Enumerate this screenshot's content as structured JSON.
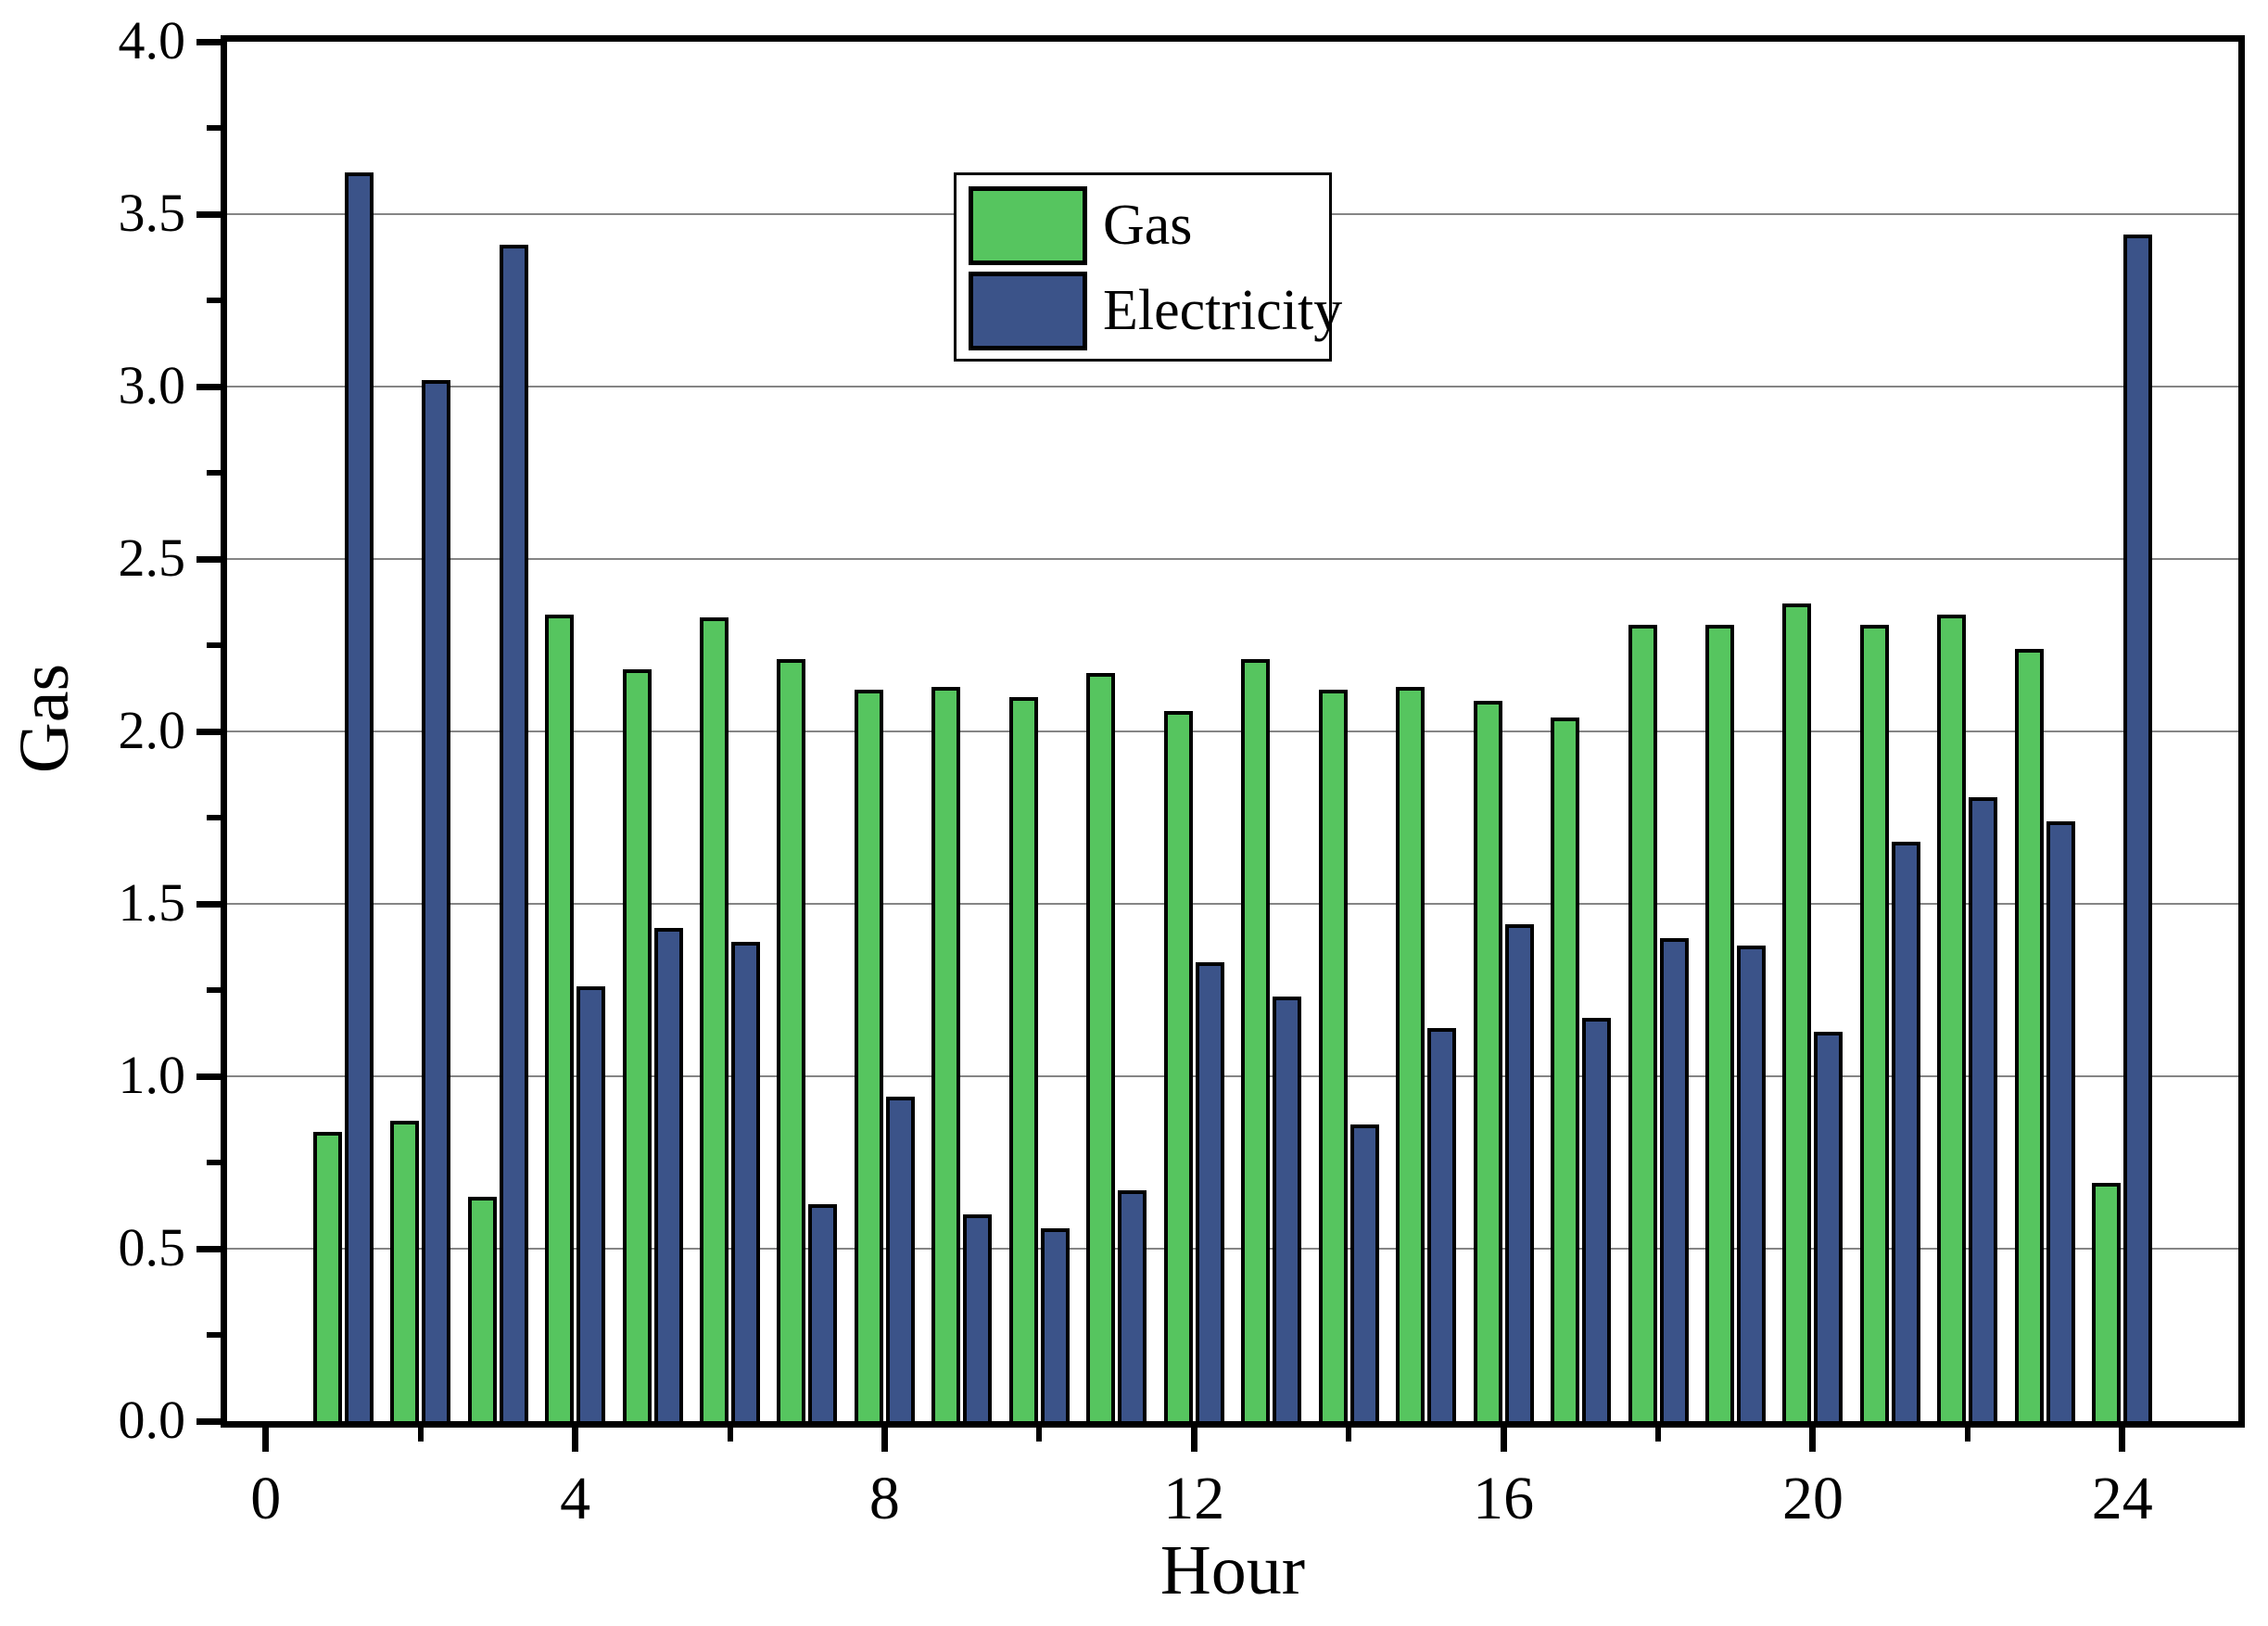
{
  "chart_data": {
    "type": "bar",
    "title": "",
    "xlabel": "Hour",
    "ylabel": "Gas",
    "xlim": [
      -0.5,
      25.5
    ],
    "ylim": [
      0.0,
      4.0
    ],
    "grid": {
      "horizontal_major": true,
      "vertical": false,
      "style": "solid",
      "color": "#858585"
    },
    "legend_position": "upper-center-inside",
    "y_major_ticks": [
      {
        "value": 0.0,
        "label": "0.0"
      },
      {
        "value": 0.5,
        "label": "0.5"
      },
      {
        "value": 1.0,
        "label": "1.0"
      },
      {
        "value": 1.5,
        "label": "1.5"
      },
      {
        "value": 2.0,
        "label": "2.0"
      },
      {
        "value": 2.5,
        "label": "2.5"
      },
      {
        "value": 3.0,
        "label": "3.0"
      },
      {
        "value": 3.5,
        "label": "3.5"
      },
      {
        "value": 4.0,
        "label": "4.0"
      }
    ],
    "y_minor_tick_values": [
      0.25,
      0.75,
      1.25,
      1.75,
      2.25,
      2.75,
      3.25,
      3.75
    ],
    "x_major_ticks": [
      {
        "value": 0,
        "label": "0"
      },
      {
        "value": 4,
        "label": "4"
      },
      {
        "value": 8,
        "label": "8"
      },
      {
        "value": 12,
        "label": "12"
      },
      {
        "value": 16,
        "label": "16"
      },
      {
        "value": 20,
        "label": "20"
      },
      {
        "value": 24,
        "label": "24"
      }
    ],
    "x_minor_tick_values": [
      2,
      6,
      10,
      14,
      18,
      22
    ],
    "categories": [
      1,
      2,
      3,
      4,
      5,
      6,
      7,
      8,
      9,
      10,
      11,
      12,
      13,
      14,
      15,
      16,
      17,
      18,
      19,
      20,
      21,
      22,
      23,
      24
    ],
    "series": [
      {
        "name": "Gas",
        "color": "#56C55F",
        "edge_color": "#000000",
        "values": [
          0.84,
          0.87,
          0.65,
          2.34,
          2.18,
          2.33,
          2.21,
          2.12,
          2.13,
          2.1,
          2.17,
          2.06,
          2.21,
          2.12,
          2.13,
          2.09,
          2.04,
          2.31,
          2.31,
          2.37,
          2.31,
          2.34,
          2.24,
          0.69
        ]
      },
      {
        "name": "Electricity",
        "color": "#3B5389",
        "edge_color": "#000000",
        "values": [
          3.62,
          3.02,
          3.41,
          1.26,
          1.43,
          1.39,
          0.63,
          0.94,
          0.6,
          0.56,
          0.67,
          1.33,
          1.23,
          0.86,
          1.14,
          1.44,
          1.17,
          1.4,
          1.38,
          1.13,
          1.68,
          1.81,
          1.74,
          3.44
        ]
      }
    ]
  },
  "legend": {
    "items": [
      {
        "label": "Gas",
        "swatch_color": "#56C55F"
      },
      {
        "label": "Electricity",
        "swatch_color": "#3B5389"
      }
    ]
  },
  "colors": {
    "background": "#FFFFFF",
    "axis": "#000000",
    "grid": "#858585",
    "gas": "#56C55F",
    "electricity": "#3B5389"
  }
}
